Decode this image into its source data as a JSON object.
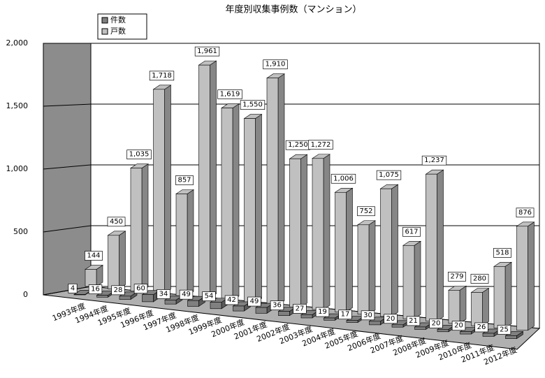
{
  "chart_data": {
    "type": "bar3d",
    "title": "年度別収集事例数（マンション）",
    "categories": [
      "1993年度",
      "1994年度",
      "1995年度",
      "1996年度",
      "1997年度",
      "1998年度",
      "1999年度",
      "2000年度",
      "2001年度",
      "2002年度",
      "2003年度",
      "2004年度",
      "2005年度",
      "2006年度",
      "2007年度",
      "2008年度",
      "2009年度",
      "2010年度",
      "2011年度",
      "2012年度"
    ],
    "series": [
      {
        "name": "件数",
        "color": "#808080",
        "values": [
          4,
          16,
          28,
          60,
          34,
          49,
          54,
          42,
          49,
          36,
          27,
          19,
          17,
          30,
          20,
          21,
          20,
          20,
          26,
          25
        ]
      },
      {
        "name": "戸数",
        "color": "#c0c0c0",
        "values": [
          144,
          450,
          1035,
          1718,
          857,
          1961,
          1619,
          1550,
          1910,
          1250,
          1272,
          1006,
          752,
          1075,
          617,
          1237,
          279,
          280,
          518,
          876
        ],
        "value_labels": [
          "144",
          "450",
          "1,035",
          "1,718",
          "857",
          "1,961",
          "1,619",
          "1,550",
          "1,910",
          "1,250",
          "1,272",
          "1,006",
          "752",
          "1,075",
          "617",
          "1,237",
          "279",
          "280",
          "518",
          "876"
        ]
      }
    ],
    "ylim": [
      0,
      2000
    ],
    "yticks": [
      0,
      500,
      {
        "value": 1000,
        "label": "1,000"
      },
      {
        "value": 1500,
        "label": "1,500"
      },
      {
        "value": 2000,
        "label": "2,000"
      }
    ],
    "grid": true
  }
}
